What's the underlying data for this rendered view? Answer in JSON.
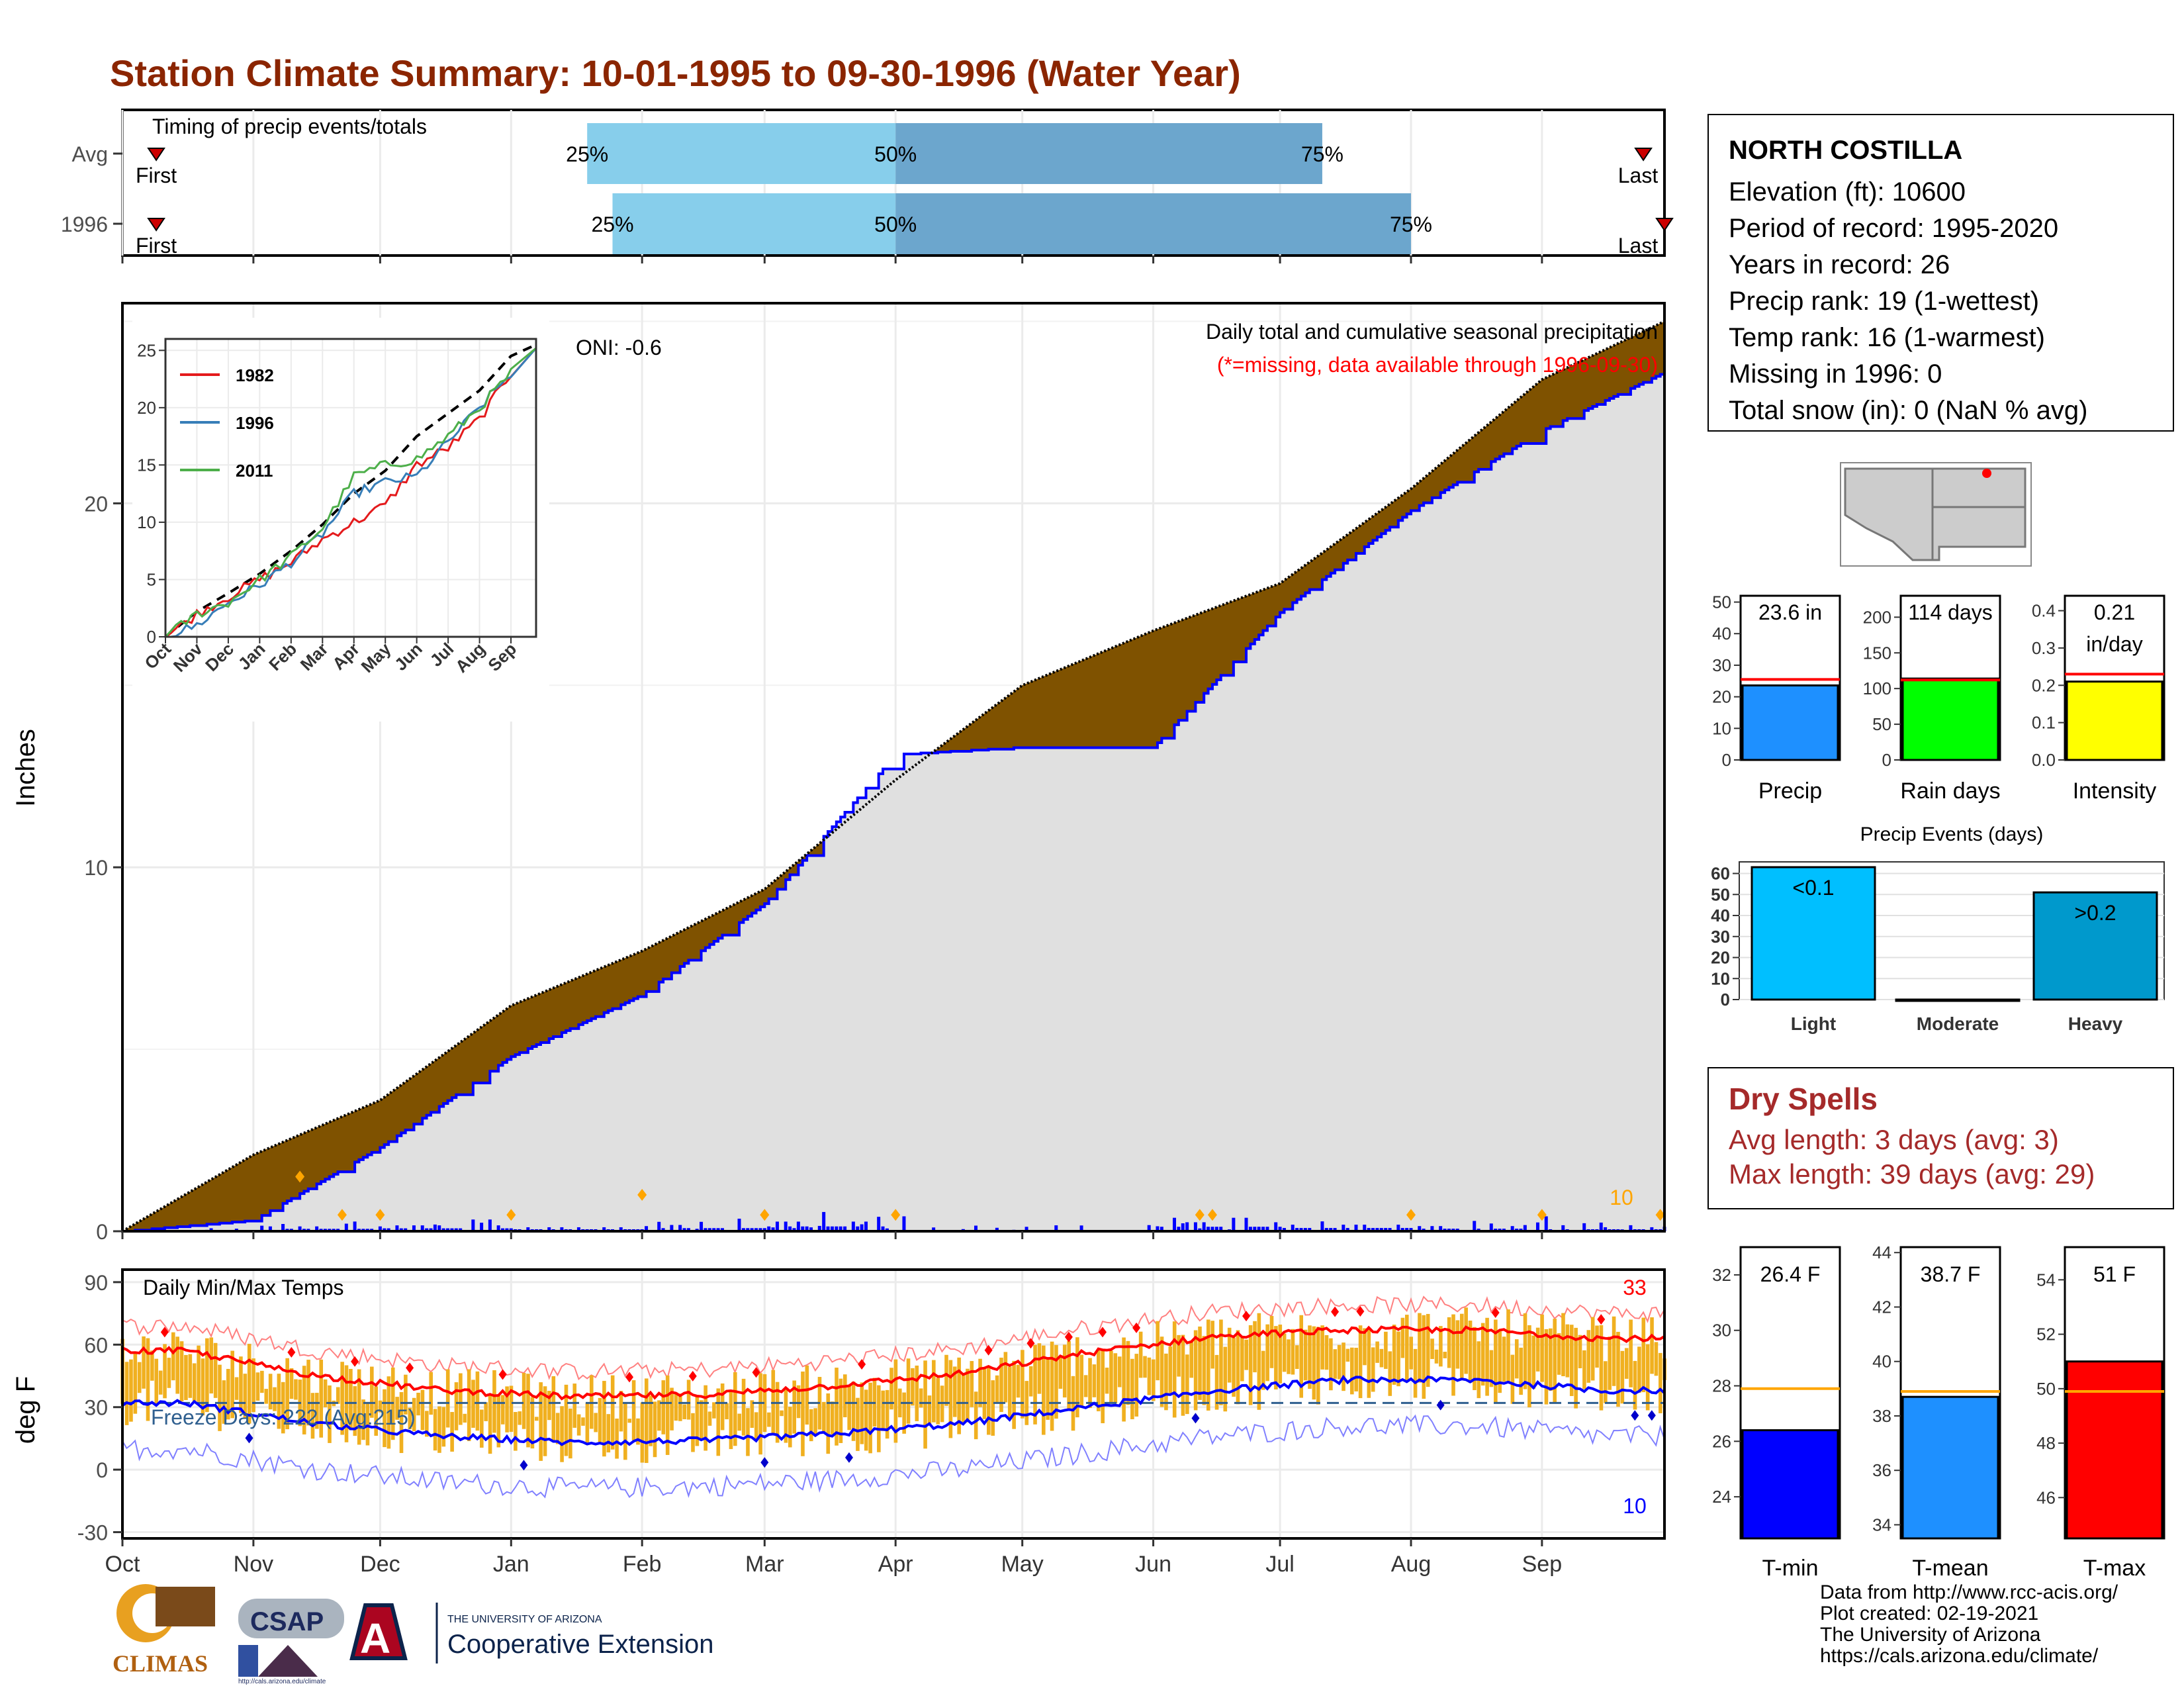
{
  "title": "Station Climate Summary: 10-01-1995 to 09-30-1996 (Water Year)",
  "timing": {
    "label": "Timing of precip events/totals",
    "rows": [
      {
        "label": "Avg",
        "first_label": "First",
        "last_label": "Last",
        "p25": "25%",
        "p50": "50%",
        "p75": "75%"
      },
      {
        "label": "1996",
        "first_label": "First",
        "last_label": "Last",
        "p25": "25%",
        "p50": "50%",
        "p75": "75%"
      }
    ],
    "bars": [
      {
        "row": "Avg",
        "p25_date": "1996-01-19",
        "p50_date": "1996-04-01",
        "p75_date": "1996-07-11"
      },
      {
        "row": "1996",
        "p25_date": "1996-01-25",
        "p50_date": "1996-04-01",
        "p75_date": "1996-08-01"
      }
    ],
    "first_dates": [
      "1995-10-09",
      "1995-10-09"
    ],
    "last_dates": [
      "1996-09-25",
      "1996-09-30"
    ]
  },
  "precip_panel": {
    "ylabel": "Inches",
    "yticks": [
      "0",
      "10",
      "20"
    ],
    "title1": "Daily total and cumulative seasonal precipitation",
    "title2": "(*=missing, data available through 1996-09-30)",
    "oni": "ONI: -0.6",
    "count_label": "10",
    "colors": {
      "avg_fill": "#7f5200",
      "obs_fill": "#e0e0e0",
      "obs_line": "#0000ff",
      "avg_line": "#000000",
      "daily_bar": "#0000ff",
      "marker": "#ffa500"
    }
  },
  "inset": {
    "yticks": [
      "0",
      "5",
      "10",
      "15",
      "20",
      "25"
    ],
    "xticks": [
      "Oct",
      "Nov",
      "Dec",
      "Jan",
      "Feb",
      "Mar",
      "Apr",
      "May",
      "Jun",
      "Jul",
      "Aug",
      "Sep"
    ],
    "legend": [
      {
        "name": "1982",
        "color": "#e41a1c"
      },
      {
        "name": "1996",
        "color": "#377eb8"
      },
      {
        "name": "2011",
        "color": "#4daf4a"
      }
    ]
  },
  "temp_panel": {
    "ylabel": "deg F",
    "title": "Daily Min/Max Temps",
    "yticks": [
      "90",
      "60",
      "30",
      "0",
      "-30"
    ],
    "freeze": "Freeze Days: 222 (Avg:215)",
    "count_max": "33",
    "count_min": "10",
    "freeze_line": 32,
    "colors": {
      "bar": "#f0b020",
      "max_avg": "#ff0000",
      "min_avg": "#0000ff",
      "max_rec": "#ff8080",
      "min_rec": "#8080ff",
      "freeze": "#2f5f8f"
    }
  },
  "months": [
    "Oct",
    "Nov",
    "Dec",
    "Jan",
    "Feb",
    "Mar",
    "Apr",
    "May",
    "Jun",
    "Jul",
    "Aug",
    "Sep"
  ],
  "station": {
    "name": "NORTH COSTILLA",
    "lines": [
      "Elevation (ft): 10600",
      "Period of record: 1995-2020",
      "Years in record: 26",
      "Precip rank: 19 (1-wettest)",
      "Temp rank: 16 (1-warmest)",
      "Missing in 1996: 0",
      "Total snow (in): 0 (NaN % avg)"
    ]
  },
  "mini_bars": [
    {
      "label": "Precip",
      "value_label": "23.6 in",
      "value": 23.6,
      "avg": 25.5,
      "max": 52,
      "ticks": [
        "0",
        "10",
        "20",
        "30",
        "40",
        "50"
      ],
      "color": "#1e90ff",
      "avg_color": "#ff0000"
    },
    {
      "label": "Rain days",
      "value_label": "114 days",
      "value": 114,
      "avg": 112,
      "max": 230,
      "ticks": [
        "0",
        "50",
        "100",
        "150",
        "200"
      ],
      "color": "#00ff00",
      "avg_color": "#ff0000"
    },
    {
      "label": "Intensity",
      "value_label": "0.21",
      "value_label2": "in/day",
      "value": 0.21,
      "avg": 0.23,
      "max": 0.44,
      "ticks": [
        "0.0",
        "0.1",
        "0.2",
        "0.3",
        "0.4"
      ],
      "color": "#ffff00",
      "avg_color": "#ff0000"
    }
  ],
  "events": {
    "title": "Precip Events (days)",
    "ticks": [
      "0",
      "10",
      "20",
      "30",
      "40",
      "50",
      "60"
    ],
    "bars": [
      {
        "label": "Light",
        "value_label": "<0.1",
        "value": 63,
        "color": "#00bfff"
      },
      {
        "label": "Moderate",
        "value_label": "",
        "value": 0,
        "color": "#1e90ff"
      },
      {
        "label": "Heavy",
        "value_label": ">0.2",
        "value": 51,
        "color": "#0099cc"
      }
    ]
  },
  "dry_spells": {
    "title": "Dry Spells",
    "avg": "Avg length: 3 days (avg: 3)",
    "max": "Max length: 39 days (avg: 29)"
  },
  "temp_bars": [
    {
      "label": "T-min",
      "value_label": "26.4 F",
      "value": 26.4,
      "avg": 27.9,
      "min": 22.5,
      "max": 33,
      "ticks": [
        "24",
        "26",
        "28",
        "30",
        "32"
      ],
      "color": "#0000ff"
    },
    {
      "label": "T-mean",
      "value_label": "38.7 F",
      "value": 38.7,
      "avg": 38.9,
      "min": 33.5,
      "max": 44.2,
      "ticks": [
        "34",
        "36",
        "38",
        "40",
        "42",
        "44"
      ],
      "color": "#1e90ff"
    },
    {
      "label": "T-max",
      "value_label": "51 F",
      "value": 51.0,
      "avg": 49.9,
      "min": 44.5,
      "max": 55.2,
      "ticks": [
        "46",
        "48",
        "50",
        "52",
        "54"
      ],
      "color": "#ff0000"
    }
  ],
  "credits": [
    "Data from http://www.rcc-acis.org/",
    "Plot created: 02-19-2021",
    "The University of Arizona",
    "https://cals.arizona.edu/climate/"
  ],
  "logos": {
    "climas": "CLIMAS",
    "csap": "CSAP",
    "csap_url": "http://cals.arizona.edu/climate",
    "ua_small": "THE UNIVERSITY OF ARIZONA",
    "ua_big": "Cooperative Extension"
  },
  "chart_data": [
    {
      "type": "area",
      "title": "Daily total and cumulative seasonal precipitation",
      "ylabel": "Inches",
      "ylim": [
        0,
        25.5
      ],
      "x": [
        "1995-10-01",
        "1995-11-01",
        "1995-12-01",
        "1996-01-01",
        "1996-02-01",
        "1996-03-01",
        "1996-04-01",
        "1996-05-01",
        "1996-06-01",
        "1996-07-01",
        "1996-08-01",
        "1996-09-01",
        "1996-09-30"
      ],
      "series": [
        {
          "name": "Avg",
          "values": [
            0,
            2.1,
            3.6,
            6.2,
            7.7,
            9.4,
            12.4,
            15.0,
            16.5,
            17.8,
            20.4,
            23.4,
            25.0
          ]
        },
        {
          "name": "1996",
          "values": [
            0,
            0.3,
            2.3,
            4.8,
            6.5,
            9.0,
            13.1,
            13.3,
            13.3,
            17.0,
            19.8,
            22.0,
            23.6
          ]
        }
      ],
      "grid": true
    },
    {
      "type": "line",
      "title": "",
      "xlabel": "",
      "ylabel": "",
      "ylim": [
        0,
        25.5
      ],
      "categories": [
        "Oct",
        "Nov",
        "Dec",
        "Jan",
        "Feb",
        "Mar",
        "Apr",
        "May",
        "Jun",
        "Jul",
        "Aug",
        "Sep"
      ],
      "series": [
        {
          "name": "1982",
          "values": [
            0,
            2,
            3.5,
            5,
            6.5,
            8.5,
            10,
            11.5,
            15,
            16.5,
            19,
            23
          ]
        },
        {
          "name": "1996",
          "values": [
            0,
            1,
            3,
            4.5,
            6.5,
            9,
            12.5,
            13.5,
            14,
            17,
            20,
            23
          ]
        },
        {
          "name": "2011",
          "values": [
            0,
            2,
            3,
            5,
            7,
            9.5,
            14,
            15,
            15.5,
            17.5,
            20,
            23
          ]
        }
      ]
    },
    {
      "type": "line",
      "title": "Daily Min/Max Temps",
      "ylabel": "deg F",
      "ylim": [
        -30,
        95
      ],
      "categories": [
        "Oct",
        "Nov",
        "Dec",
        "Jan",
        "Feb",
        "Mar",
        "Apr",
        "May",
        "Jun",
        "Jul",
        "Aug",
        "Sep"
      ],
      "series": [
        {
          "name": "Avg max",
          "values": [
            57,
            45,
            38,
            35,
            36,
            40,
            46,
            56,
            64,
            67,
            67,
            63
          ]
        },
        {
          "name": "Avg min",
          "values": [
            32,
            22,
            16,
            13,
            14,
            17,
            22,
            30,
            38,
            43,
            43,
            38
          ]
        }
      ],
      "grid": true
    },
    {
      "type": "bar",
      "title": "Precip Events (days)",
      "categories": [
        "Light",
        "Moderate",
        "Heavy"
      ],
      "values": [
        63,
        0,
        51
      ]
    }
  ]
}
